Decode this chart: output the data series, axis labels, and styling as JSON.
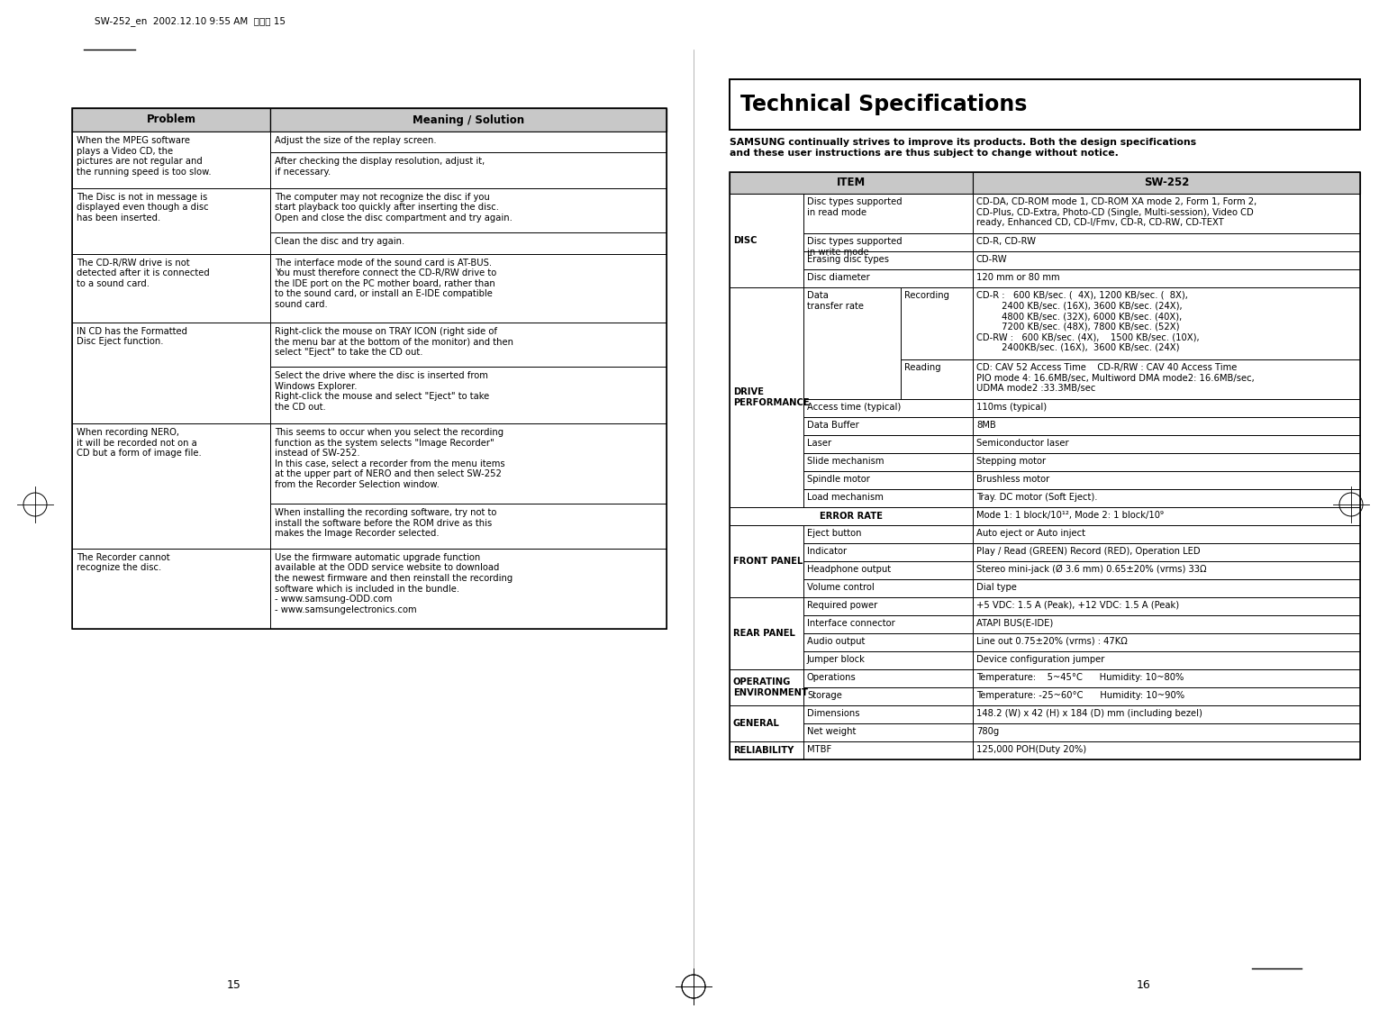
{
  "page_header": "SW-252_en  2002.12.10 9:55 AM  페이지 15",
  "page_number_left": "15",
  "page_number_right": "16",
  "title": "Technical Specifications",
  "subtitle": "SAMSUNG continually strives to improve its products. Both the design specifications\nand these user instructions are thus subject to change without notice.",
  "left_table_headers": [
    "Problem",
    "Meaning / Solution"
  ],
  "left_table_rows": [
    {
      "problem": "When the MPEG software\nplays a Video CD, the\npictures are not regular and\nthe running speed is too slow.",
      "solutions": [
        "Adjust the size of the replay screen.",
        "After checking the display resolution, adjust it,\nif necessary."
      ]
    },
    {
      "problem": "The Disc is not in message is\ndisplayed even though a disc\nhas been inserted.",
      "solutions": [
        "The computer may not recognize the disc if you\nstart playback too quickly after inserting the disc.\nOpen and close the disc compartment and try again.",
        "Clean the disc and try again."
      ]
    },
    {
      "problem": "The CD-R/RW drive is not\ndetected after it is connected\nto a sound card.",
      "solutions": [
        "The interface mode of the sound card is AT-BUS.\nYou must therefore connect the CD-R/RW drive to\nthe IDE port on the PC mother board, rather than\nto the sound card, or install an E-IDE compatible\nsound card."
      ]
    },
    {
      "problem": "IN CD has the Formatted\nDisc Eject function.",
      "solutions": [
        "Right-click the mouse on TRAY ICON (right side of\nthe menu bar at the bottom of the monitor) and then\nselect \"Eject\" to take the CD out.",
        "Select the drive where the disc is inserted from\nWindows Explorer.\nRight-click the mouse and select \"Eject\" to take\nthe CD out."
      ]
    },
    {
      "problem": "When recording NERO,\nit will be recorded not on a\nCD but a form of image file.",
      "solutions": [
        "This seems to occur when you select the recording\nfunction as the system selects \"Image Recorder\"\ninstead of SW-252.\nIn this case, select a recorder from the menu items\nat the upper part of NERO and then select SW-252\nfrom the Recorder Selection window.",
        "When installing the recording software, try not to\ninstall the software before the ROM drive as this\nmakes the Image Recorder selected."
      ]
    },
    {
      "problem": "The Recorder cannot\nrecognize the disc.",
      "solutions": [
        "Use the firmware automatic upgrade function\navailable at the ODD service website to download\nthe newest firmware and then reinstall the recording\nsoftware which is included in the bundle.\n- www.samsung-ODD.com\n- www.samsungelectronics.com"
      ]
    }
  ],
  "right_table_sections": [
    {
      "section": "DISC",
      "section_bold": true,
      "rows": [
        {
          "col1": "Disc types supported\nin read mode",
          "col2": "",
          "value": "CD-DA, CD-ROM mode 1, CD-ROM XA mode 2, Form 1, Form 2,\nCD-Plus, CD-Extra, Photo-CD (Single, Multi-session), Video CD\nready, Enhanced CD, CD-I/Fmv, CD-R, CD-RW, CD-TEXT"
        },
        {
          "col1": "Disc types supported\nin write mode",
          "col2": "",
          "value": "CD-R, CD-RW"
        },
        {
          "col1": "Erasing disc types",
          "col2": "",
          "value": "CD-RW"
        },
        {
          "col1": "Disc diameter",
          "col2": "",
          "value": "120 mm or 80 mm"
        }
      ]
    },
    {
      "section": "DRIVE\nPERFORMANCE",
      "section_bold": true,
      "rows": [
        {
          "col1": "Data\ntransfer rate",
          "col1_span": 2,
          "col2": "Recording",
          "value": "CD-R :   600 KB/sec. (  4X), 1200 KB/sec. (  8X),\n         2400 KB/sec. (16X), 3600 KB/sec. (24X),\n         4800 KB/sec. (32X), 6000 KB/sec. (40X),\n         7200 KB/sec. (48X), 7800 KB/sec. (52X)\nCD-RW :   600 KB/sec. (4X),    1500 KB/sec. (10X),\n         2400KB/sec. (16X),  3600 KB/sec. (24X)"
        },
        {
          "col1": "",
          "col1_span": 2,
          "col2": "Reading",
          "value": "CD: CAV 52 Access Time    CD-R/RW : CAV 40 Access Time\nPIO mode 4: 16.6MB/sec, Multiword DMA mode2: 16.6MB/sec,\nUDMA mode2 :33.3MB/sec"
        },
        {
          "col1": "Access time (typical)",
          "col2": "",
          "value": "110ms (typical)"
        },
        {
          "col1": "Data Buffer",
          "col2": "",
          "value": "8MB"
        },
        {
          "col1": "Laser",
          "col2": "",
          "value": "Semiconductor laser"
        },
        {
          "col1": "Slide mechanism",
          "col2": "",
          "value": "Stepping motor"
        },
        {
          "col1": "Spindle motor",
          "col2": "",
          "value": "Brushless motor"
        },
        {
          "col1": "Load mechanism",
          "col2": "",
          "value": "Tray. DC motor (Soft Eject)."
        }
      ]
    },
    {
      "section": "ERROR RATE",
      "section_bold": true,
      "error_rate_row": true,
      "rows": [
        {
          "col1": "",
          "col2": "",
          "value": "Mode 1: 1 block/10¹², Mode 2: 1 block/10⁹"
        }
      ]
    },
    {
      "section": "FRONT PANEL",
      "section_bold": true,
      "rows": [
        {
          "col1": "Eject button",
          "col2": "",
          "value": "Auto eject or Auto inject"
        },
        {
          "col1": "Indicator",
          "col2": "",
          "value": "Play / Read (GREEN) Record (RED), Operation LED"
        },
        {
          "col1": "Headphone output",
          "col2": "",
          "value": "Stereo mini-jack (Ø 3.6 mm) 0.65±20% (vrms) 33Ω"
        },
        {
          "col1": "Volume control",
          "col2": "",
          "value": "Dial type"
        }
      ]
    },
    {
      "section": "REAR PANEL",
      "section_bold": true,
      "rows": [
        {
          "col1": "Required power",
          "col2": "",
          "value": "+5 VDC: 1.5 A (Peak), +12 VDC: 1.5 A (Peak)"
        },
        {
          "col1": "Interface connector",
          "col2": "",
          "value": "ATAPI BUS(E-IDE)"
        },
        {
          "col1": "Audio output",
          "col2": "",
          "value": "Line out 0.75±20% (vrms) : 47KΩ"
        },
        {
          "col1": "Jumper block",
          "col2": "",
          "value": "Device configuration jumper"
        }
      ]
    },
    {
      "section": "OPERATING\nENVIRONMENT",
      "section_bold": true,
      "rows": [
        {
          "col1": "Operations",
          "col2": "",
          "value": "Temperature:    5~45°C      Humidity: 10~80%"
        },
        {
          "col1": "Storage",
          "col2": "",
          "value": "Temperature: -25~60°C      Humidity: 10~90%"
        }
      ]
    },
    {
      "section": "GENERAL",
      "section_bold": true,
      "rows": [
        {
          "col1": "Dimensions",
          "col2": "",
          "value": "148.2 (W) x 42 (H) x 184 (D) mm (including bezel)"
        },
        {
          "col1": "Net weight",
          "col2": "",
          "value": "780g"
        }
      ]
    },
    {
      "section": "RELIABILITY",
      "section_bold": true,
      "rows": [
        {
          "col1": "MTBF",
          "col2": "",
          "value": "125,000 POH(Duty 20%)"
        }
      ]
    }
  ],
  "bg_color": "#ffffff",
  "header_fill": "#c8c8c8",
  "fs_body": 7.2,
  "fs_header": 8.5,
  "fs_title": 17,
  "fs_subtitle": 7.8,
  "fs_small": 6.8
}
